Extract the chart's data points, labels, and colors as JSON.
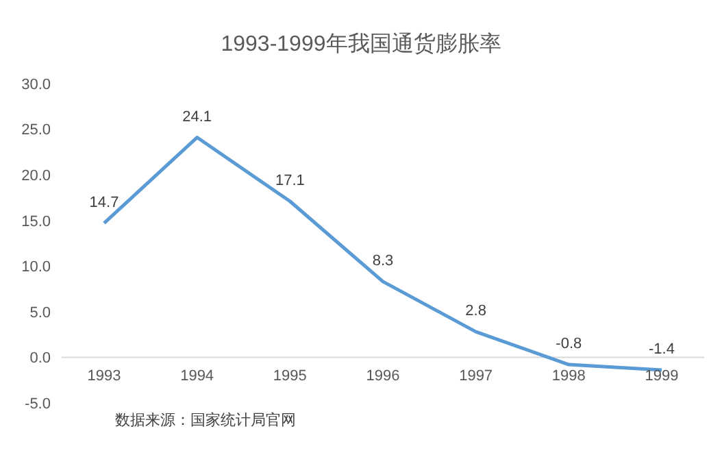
{
  "chart_data": {
    "type": "line",
    "title": "1993-1999年我国通货膨胀率",
    "categories": [
      "1993",
      "1994",
      "1995",
      "1996",
      "1997",
      "1998",
      "1999"
    ],
    "series": [
      {
        "color": "#5b9bd5",
        "values": [
          14.7,
          24.1,
          17.1,
          8.3,
          2.8,
          -0.8,
          -1.4
        ]
      }
    ],
    "ylim": [
      -5,
      30
    ],
    "yticks": [
      {
        "value": -5,
        "label": "-5.0"
      },
      {
        "value": 0,
        "label": "0.0"
      },
      {
        "value": 5,
        "label": "5.0"
      },
      {
        "value": 10,
        "label": "10.0"
      },
      {
        "value": 15,
        "label": "15.0"
      },
      {
        "value": 20,
        "label": "20.0"
      },
      {
        "value": 25,
        "label": "25.0"
      },
      {
        "value": 30,
        "label": "30.0"
      }
    ],
    "data_labels": true,
    "grid": false,
    "legend": false,
    "marker": "none",
    "line_style": "solid",
    "annotations": [
      "数据来源：国家统计局官网"
    ]
  }
}
